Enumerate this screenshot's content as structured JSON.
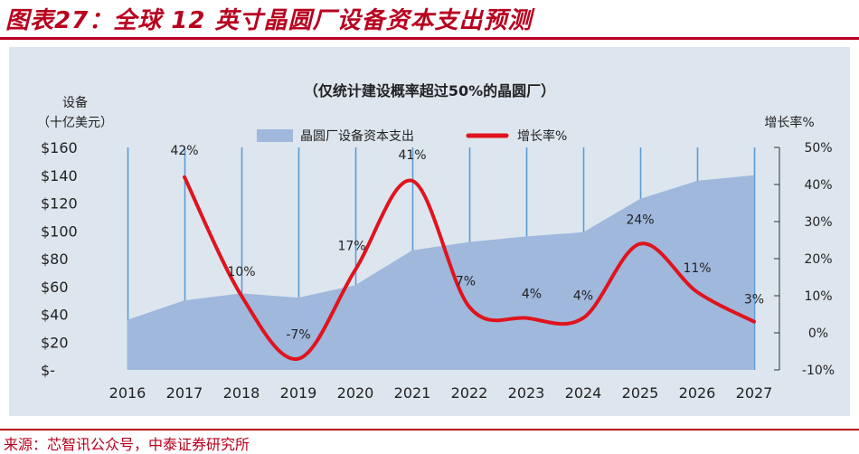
{
  "header": {
    "title": "图表27：全球 12 英寸晶圆厂设备资本支出预测"
  },
  "source": "来源：芯智讯公众号，中泰证券研究所",
  "chart_data": {
    "type": "area+line",
    "subtitle": "（仅统计建设概率超过50%的晶圆厂）",
    "y_left_label_line1": "设备",
    "y_left_label_line2": "（十亿美元）",
    "y_right_label": "增长率%",
    "legend": {
      "area": "晶圆厂设备资本支出",
      "line": "增长率%",
      "placement": "top-center"
    },
    "x": [
      "2016",
      "2017",
      "2018",
      "2019",
      "2020",
      "2021",
      "2022",
      "2023",
      "2024",
      "2025",
      "2026",
      "2027"
    ],
    "y_left_ticks": [
      "$160",
      "$140",
      "$120",
      "$100",
      "$80",
      "$60",
      "$40",
      "$20",
      "$-"
    ],
    "y_left_range": [
      0,
      160
    ],
    "y_right_ticks": [
      "50%",
      "40%",
      "30%",
      "20%",
      "10%",
      "0%",
      "-10%"
    ],
    "y_right_range": [
      -10,
      50
    ],
    "capex": [
      36,
      50,
      55,
      52,
      61,
      86,
      92,
      96,
      99,
      123,
      136,
      140
    ],
    "growth_x": [
      "2017",
      "2018",
      "2019",
      "2020",
      "2021",
      "2022",
      "2023",
      "2024",
      "2025",
      "2026",
      "2027"
    ],
    "growth": [
      42,
      10,
      -7,
      17,
      41,
      7,
      4,
      4,
      24,
      11,
      3
    ],
    "growth_labels": [
      "42%",
      "10%",
      "-7%",
      "17%",
      "41%",
      "7%",
      "4%",
      "4%",
      "24%",
      "11%",
      "3%"
    ],
    "colors": {
      "area": "#9fb8dc",
      "line": "#e0141e",
      "grid": "#5b9bd5",
      "background": "#dde6ee",
      "accent": "#b8001f"
    },
    "grid": "vertical"
  }
}
